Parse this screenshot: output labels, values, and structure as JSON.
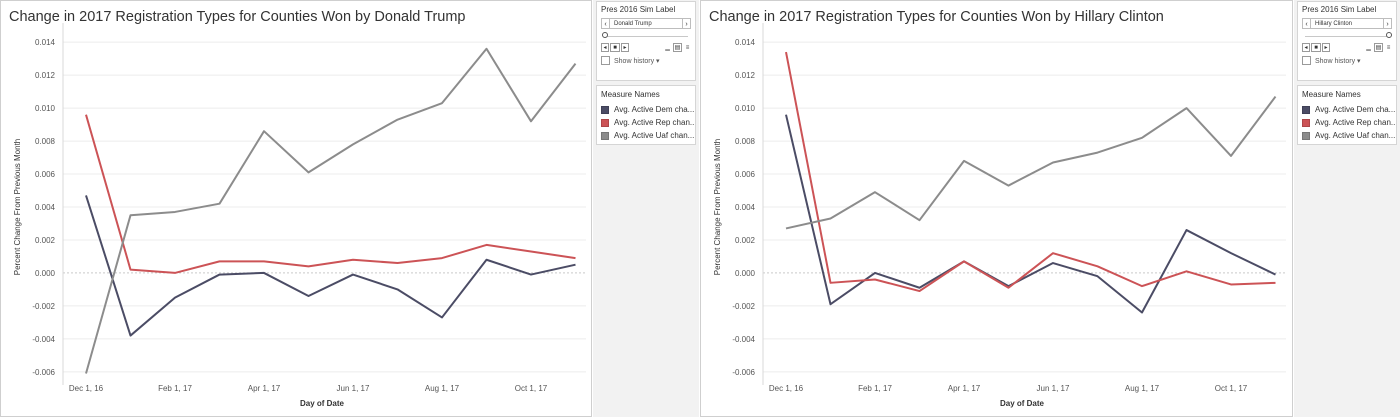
{
  "colors": {
    "dem": "#4b4c65",
    "rep": "#cc5356",
    "uaf": "#8c8c8c"
  },
  "panels": [
    {
      "title": "Change in 2017 Registration Types for Counties Won by Donald Trump",
      "parameter": {
        "title": "Pres 2016 Sim Label",
        "value": "Donald Trump",
        "prev": "‹",
        "next": "›"
      },
      "show_history": "Show history ▾",
      "legend": {
        "title": "Measure Names",
        "items": [
          {
            "label": "Avg. Active Dem cha...",
            "color": "#4b4c65"
          },
          {
            "label": "Avg. Active Rep chan...",
            "color": "#cc5356"
          },
          {
            "label": "Avg. Active Uaf chan...",
            "color": "#8c8c8c"
          }
        ]
      }
    },
    {
      "title": "Change in 2017 Registration Types for Counties Won by Hillary Clinton",
      "parameter": {
        "title": "Pres 2016 Sim Label",
        "value": "Hillary Clinton",
        "prev": "‹",
        "next": "›"
      },
      "show_history": "Show history ▾",
      "legend": {
        "title": "Measure Names",
        "items": [
          {
            "label": "Avg. Active Dem cha...",
            "color": "#4b4c65"
          },
          {
            "label": "Avg. Active Rep chan...",
            "color": "#cc5356"
          },
          {
            "label": "Avg. Active Uaf chan...",
            "color": "#8c8c8c"
          }
        ]
      }
    }
  ],
  "chart_data": [
    {
      "type": "line",
      "title": "Change in 2017 Registration Types for Counties Won by Donald Trump",
      "xlabel": "Day of Date",
      "ylabel": "Percent Change From Previous Month",
      "x": [
        "Dec 1, 16",
        "Jan 1, 17",
        "Feb 1, 17",
        "Mar 1, 17",
        "Apr 1, 17",
        "May 1, 17",
        "Jun 1, 17",
        "Jul 1, 17",
        "Aug 1, 17",
        "Sep 1, 17",
        "Oct 1, 17",
        "Nov 1, 17"
      ],
      "x_tick_labels": [
        "Dec 1, 16",
        "Feb 1, 17",
        "Apr 1, 17",
        "Jun 1, 17",
        "Aug 1, 17",
        "Oct 1, 17"
      ],
      "y_ticks": [
        "0.014",
        "0.012",
        "0.010",
        "0.008",
        "0.006",
        "0.004",
        "0.002",
        "0.000",
        "-0.002",
        "-0.004",
        "-0.006"
      ],
      "ylim": [
        -0.0068,
        0.0148
      ],
      "grid": true,
      "series": [
        {
          "name": "Avg. Active Dem cha...",
          "color": "#4b4c65",
          "values": [
            0.0047,
            -0.0038,
            -0.0015,
            -0.0001,
            0.0,
            -0.0014,
            -0.0001,
            -0.001,
            -0.0027,
            0.0008,
            -0.0001,
            0.0005
          ]
        },
        {
          "name": "Avg. Active Rep chan...",
          "color": "#cc5356",
          "values": [
            0.0096,
            0.0002,
            0.0,
            0.0007,
            0.0007,
            0.0004,
            0.0008,
            0.0006,
            0.0009,
            0.0017,
            0.0013,
            0.0009
          ]
        },
        {
          "name": "Avg. Active Uaf chan...",
          "color": "#8c8c8c",
          "values": [
            -0.0061,
            0.0035,
            0.0037,
            0.0042,
            0.0086,
            0.0061,
            0.0078,
            0.0093,
            0.0103,
            0.0136,
            0.0092,
            0.0127
          ]
        }
      ]
    },
    {
      "type": "line",
      "title": "Change in 2017 Registration Types for Counties Won by Hillary Clinton",
      "xlabel": "Day of Date",
      "ylabel": "Percent Change From Previous Month",
      "x": [
        "Dec 1, 16",
        "Jan 1, 17",
        "Feb 1, 17",
        "Mar 1, 17",
        "Apr 1, 17",
        "May 1, 17",
        "Jun 1, 17",
        "Jul 1, 17",
        "Aug 1, 17",
        "Sep 1, 17",
        "Oct 1, 17",
        "Nov 1, 17"
      ],
      "x_tick_labels": [
        "Dec 1, 16",
        "Feb 1, 17",
        "Apr 1, 17",
        "Jun 1, 17",
        "Aug 1, 17",
        "Oct 1, 17"
      ],
      "y_ticks": [
        "0.014",
        "0.012",
        "0.010",
        "0.008",
        "0.006",
        "0.004",
        "0.002",
        "0.000",
        "-0.002",
        "-0.004",
        "-0.006"
      ],
      "ylim": [
        -0.0068,
        0.0148
      ],
      "grid": true,
      "series": [
        {
          "name": "Avg. Active Dem cha...",
          "color": "#4b4c65",
          "values": [
            0.0096,
            -0.0019,
            0.0,
            -0.0009,
            0.0007,
            -0.0008,
            0.0006,
            -0.0002,
            -0.0024,
            0.0026,
            0.0012,
            -0.0001
          ]
        },
        {
          "name": "Avg. Active Rep chan...",
          "color": "#cc5356",
          "values": [
            0.0134,
            -0.0006,
            -0.0004,
            -0.0011,
            0.0007,
            -0.0009,
            0.0012,
            0.0004,
            -0.0008,
            0.0001,
            -0.0007,
            -0.0006
          ]
        },
        {
          "name": "Avg. Active Uaf chan...",
          "color": "#8c8c8c",
          "values": [
            0.0027,
            0.0033,
            0.0049,
            0.0032,
            0.0068,
            0.0053,
            0.0067,
            0.0073,
            0.0082,
            0.01,
            0.0071,
            0.0107
          ]
        }
      ]
    }
  ]
}
